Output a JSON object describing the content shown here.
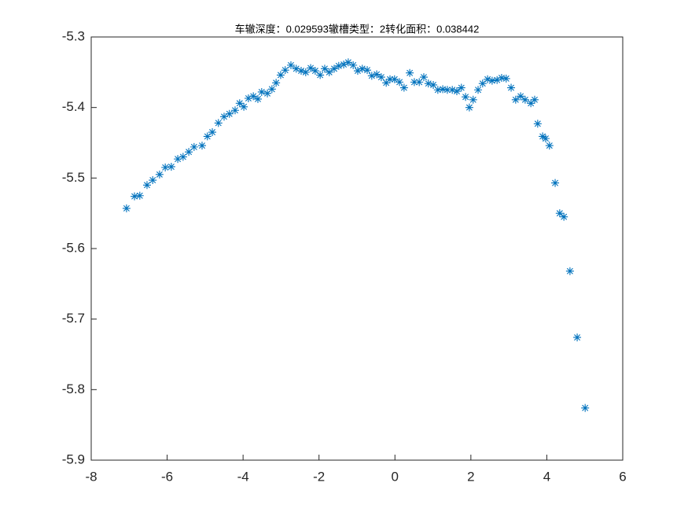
{
  "chart_data": {
    "type": "scatter",
    "title": "车辙深度：0.029593辙槽类型：2转化面积：0.038442",
    "color": "#0072bd",
    "marker": "asterisk",
    "x": [
      -7.07,
      -6.86,
      -6.72,
      -6.53,
      -6.38,
      -6.2,
      -6.05,
      -5.89,
      -5.72,
      -5.58,
      -5.43,
      -5.29,
      -5.08,
      -4.94,
      -4.81,
      -4.65,
      -4.5,
      -4.36,
      -4.21,
      -4.09,
      -3.98,
      -3.86,
      -3.73,
      -3.61,
      -3.51,
      -3.36,
      -3.24,
      -3.13,
      -3.01,
      -2.89,
      -2.74,
      -2.6,
      -2.47,
      -2.35,
      -2.22,
      -2.1,
      -1.97,
      -1.85,
      -1.73,
      -1.6,
      -1.48,
      -1.35,
      -1.23,
      -1.1,
      -0.98,
      -0.86,
      -0.73,
      -0.61,
      -0.48,
      -0.36,
      -0.23,
      -0.13,
      -0.01,
      0.12,
      0.24,
      0.39,
      0.51,
      0.64,
      0.76,
      0.88,
      1.01,
      1.13,
      1.26,
      1.38,
      1.51,
      1.63,
      1.75,
      1.86,
      1.96,
      2.06,
      2.19,
      2.31,
      2.44,
      2.56,
      2.69,
      2.81,
      2.93,
      3.06,
      3.18,
      3.31,
      3.43,
      3.58,
      3.68,
      3.76,
      3.89,
      3.97,
      4.07,
      4.22,
      4.34,
      4.45,
      4.61,
      4.8,
      5.01
    ],
    "values": [
      -5.543,
      -5.526,
      -5.525,
      -5.51,
      -5.503,
      -5.495,
      -5.485,
      -5.484,
      -5.473,
      -5.47,
      -5.463,
      -5.456,
      -5.454,
      -5.441,
      -5.435,
      -5.422,
      -5.413,
      -5.409,
      -5.404,
      -5.394,
      -5.399,
      -5.387,
      -5.384,
      -5.388,
      -5.378,
      -5.38,
      -5.374,
      -5.365,
      -5.354,
      -5.347,
      -5.34,
      -5.345,
      -5.348,
      -5.35,
      -5.344,
      -5.348,
      -5.354,
      -5.345,
      -5.35,
      -5.345,
      -5.341,
      -5.339,
      -5.336,
      -5.34,
      -5.348,
      -5.345,
      -5.347,
      -5.355,
      -5.353,
      -5.357,
      -5.365,
      -5.36,
      -5.36,
      -5.364,
      -5.372,
      -5.351,
      -5.364,
      -5.364,
      -5.357,
      -5.366,
      -5.368,
      -5.375,
      -5.374,
      -5.375,
      -5.375,
      -5.377,
      -5.372,
      -5.385,
      -5.4,
      -5.389,
      -5.375,
      -5.366,
      -5.36,
      -5.362,
      -5.361,
      -5.358,
      -5.359,
      -5.372,
      -5.389,
      -5.384,
      -5.389,
      -5.394,
      -5.389,
      -5.423,
      -5.441,
      -5.444,
      -5.454,
      -5.507,
      -5.55,
      -5.555,
      -5.632,
      -5.726,
      -5.826
    ],
    "xlim": [
      -8,
      6
    ],
    "xticks": [
      -8,
      -6,
      -4,
      -2,
      0,
      2,
      4,
      6
    ],
    "ylim": [
      -5.9,
      -5.3
    ],
    "yticks": [
      -5.9,
      -5.8,
      -5.7,
      -5.6,
      -5.5,
      -5.4,
      -5.3
    ],
    "grid": false
  }
}
